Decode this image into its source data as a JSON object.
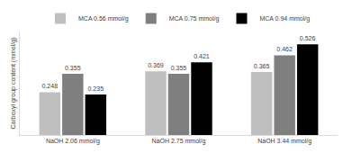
{
  "chart_data": {
    "type": "bar",
    "categories": [
      "NaOH 2.06 mmol/g",
      "NaOH 2.75 mmol/g",
      "NaOH 3.44 mmol/g"
    ],
    "series": [
      {
        "name": "MCA 0.56 mmol/g",
        "color": "#bfbfbf",
        "values": [
          0.248,
          0.369,
          0.365
        ]
      },
      {
        "name": "MCA 0.75 mmol/g",
        "color": "#7f7f7f",
        "values": [
          0.355,
          0.355,
          0.462
        ]
      },
      {
        "name": "MCA 0.94 mmol/g",
        "color": "#000000",
        "values": [
          0.235,
          0.421,
          0.526
        ]
      }
    ],
    "y_label": "Carboxyl group content (mmol/g)",
    "ylim": [
      0,
      0.6
    ],
    "grid": false,
    "legend": "top",
    "data_labels": true,
    "tick_labels": "x"
  }
}
